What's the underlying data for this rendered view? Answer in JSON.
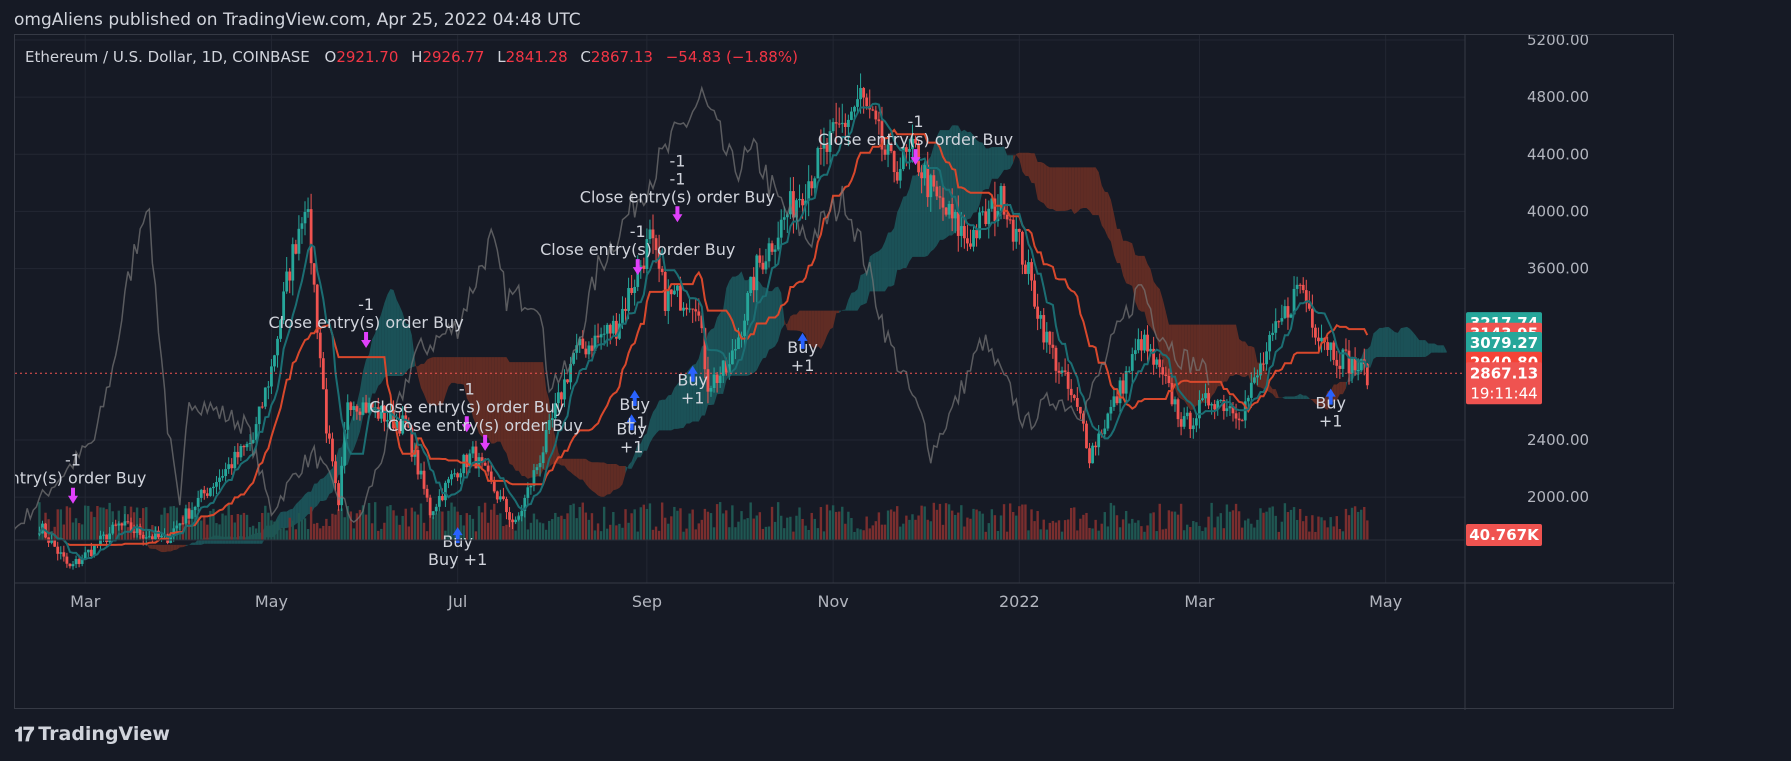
{
  "header": {
    "published": "omgAliens published on TradingView.com, Apr 25, 2022 04:48 UTC"
  },
  "footer": {
    "brand": "TradingView",
    "logo_icon": "tradingview-logo-icon"
  },
  "colors": {
    "background": "#161a25",
    "grid": "#232733",
    "up": "#26a69a",
    "down": "#ef5350",
    "text": "#b2b5be",
    "legend_value": "#f23645",
    "kijun": "#d8482c",
    "tenkan": "#1b6e73",
    "lagging": "#777777",
    "cloud_bull": "#1e6468",
    "cloud_bear": "#7a3324",
    "close_marker": "#e040fb",
    "entry_marker": "#2962ff"
  },
  "chart_data": {
    "type": "candlestick",
    "legend": {
      "symbol": "Ethereum / U.S. Dollar, 1D, COINBASE",
      "open_label": "O",
      "open": "2921.70",
      "high_label": "H",
      "high": "2926.77",
      "low_label": "L",
      "low": "2841.28",
      "close_label": "C",
      "close": "2867.13",
      "change": "−54.83 (−1.88%)"
    },
    "x_axis": {
      "ticks": [
        {
          "date": "2021-03-01",
          "label": "Mar"
        },
        {
          "date": "2021-05-01",
          "label": "May"
        },
        {
          "date": "2021-07-01",
          "label": "Jul"
        },
        {
          "date": "2021-09-01",
          "label": "Sep"
        },
        {
          "date": "2021-11-01",
          "label": "Nov"
        },
        {
          "date": "2022-01-01",
          "label": "2022"
        },
        {
          "date": "2022-03-01",
          "label": "Mar"
        },
        {
          "date": "2022-05-01",
          "label": "May"
        }
      ]
    },
    "y_axis": {
      "ticks": [
        "5200.00",
        "4800.00",
        "4400.00",
        "4000.00",
        "3600.00",
        "2400.00",
        "2000.00"
      ],
      "ylim": [
        1700,
        5200
      ]
    },
    "price_badges": [
      {
        "value": "3217.74",
        "color": "#26a69a"
      },
      {
        "value": "3143.95",
        "color": "#ef5350"
      },
      {
        "value": "3079.27",
        "color": "#26a69a"
      },
      {
        "value": "2940.80",
        "color": "#f44336"
      },
      {
        "value": "2867.13",
        "color": "#ef5350",
        "countdown": "19:11:44"
      }
    ],
    "volume_badge": {
      "value": "40.767K",
      "color": "#ef5350"
    },
    "price_path": [
      {
        "date": "2021-02-14",
        "price": 1800
      },
      {
        "date": "2021-02-24",
        "price": 1500
      },
      {
        "date": "2021-03-12",
        "price": 1800
      },
      {
        "date": "2021-03-27",
        "price": 1700
      },
      {
        "date": "2021-04-12",
        "price": 2100
      },
      {
        "date": "2021-04-25",
        "price": 2400
      },
      {
        "date": "2021-05-01",
        "price": 2900
      },
      {
        "date": "2021-05-06",
        "price": 3500
      },
      {
        "date": "2021-05-12",
        "price": 4100
      },
      {
        "date": "2021-05-14",
        "price": 3700
      },
      {
        "date": "2021-05-19",
        "price": 2500
      },
      {
        "date": "2021-05-23",
        "price": 1900
      },
      {
        "date": "2021-05-26",
        "price": 2700
      },
      {
        "date": "2021-06-04",
        "price": 2600
      },
      {
        "date": "2021-06-14",
        "price": 2500
      },
      {
        "date": "2021-06-22",
        "price": 1900
      },
      {
        "date": "2021-07-01",
        "price": 2200
      },
      {
        "date": "2021-07-06",
        "price": 2300
      },
      {
        "date": "2021-07-20",
        "price": 1800
      },
      {
        "date": "2021-07-30",
        "price": 2400
      },
      {
        "date": "2021-08-08",
        "price": 3000
      },
      {
        "date": "2021-08-22",
        "price": 3200
      },
      {
        "date": "2021-09-02",
        "price": 3800
      },
      {
        "date": "2021-09-07",
        "price": 3400
      },
      {
        "date": "2021-09-17",
        "price": 3400
      },
      {
        "date": "2021-09-21",
        "price": 2800
      },
      {
        "date": "2021-09-28",
        "price": 2900
      },
      {
        "date": "2021-10-07",
        "price": 3600
      },
      {
        "date": "2021-10-20",
        "price": 4100
      },
      {
        "date": "2021-11-10",
        "price": 4800
      },
      {
        "date": "2021-11-20",
        "price": 4300
      },
      {
        "date": "2021-11-28",
        "price": 4400
      },
      {
        "date": "2021-12-04",
        "price": 4100
      },
      {
        "date": "2021-12-15",
        "price": 3800
      },
      {
        "date": "2021-12-27",
        "price": 4100
      },
      {
        "date": "2022-01-02",
        "price": 3700
      },
      {
        "date": "2022-01-10",
        "price": 3100
      },
      {
        "date": "2022-01-22",
        "price": 2500
      },
      {
        "date": "2022-01-24",
        "price": 2300
      },
      {
        "date": "2022-02-02",
        "price": 2700
      },
      {
        "date": "2022-02-10",
        "price": 3100
      },
      {
        "date": "2022-02-20",
        "price": 2700
      },
      {
        "date": "2022-02-24",
        "price": 2500
      },
      {
        "date": "2022-03-05",
        "price": 2700
      },
      {
        "date": "2022-03-15",
        "price": 2600
      },
      {
        "date": "2022-03-25",
        "price": 3100
      },
      {
        "date": "2022-04-03",
        "price": 3500
      },
      {
        "date": "2022-04-08",
        "price": 3200
      },
      {
        "date": "2022-04-15",
        "price": 3000
      },
      {
        "date": "2022-04-25",
        "price": 2867
      }
    ],
    "annotations": [
      {
        "date": "2021-02-25",
        "price": 2010,
        "lines": [
          "-1",
          "entry(s) order Buy"
        ],
        "anchor": "middle"
      },
      {
        "date": "2021-06-01",
        "price": 3100,
        "lines": [
          "-1",
          "Close entry(s) order Buy"
        ]
      },
      {
        "date": "2021-07-04",
        "price": 2510,
        "lines": [
          "-1",
          "Close entry(s) order Buy"
        ]
      },
      {
        "date": "2021-07-10",
        "price": 2380,
        "lines": [
          "Close entry(s) order Buy"
        ]
      },
      {
        "date": "2021-08-29",
        "price": 3610,
        "lines": [
          "-1",
          "Close entry(s) order Buy"
        ]
      },
      {
        "date": "2021-09-11",
        "price": 3980,
        "lines": [
          "-1",
          "-1",
          "Close entry(s) order Buy"
        ]
      },
      {
        "date": "2021-11-28",
        "price": 4380,
        "lines": [
          "-1",
          "Close entry(s) order Buy"
        ]
      },
      {
        "date": "2021-07-01",
        "price": 1790,
        "lines": [
          "Buy",
          "Buy +1"
        ]
      },
      {
        "date": "2021-08-28",
        "price": 2750,
        "lines": [
          "Buy",
          "+1"
        ]
      },
      {
        "date": "2021-08-27",
        "price": 2580,
        "lines": [
          "Buy",
          "+1"
        ]
      },
      {
        "date": "2021-09-16",
        "price": 2920,
        "lines": [
          "Buy",
          "+1"
        ]
      },
      {
        "date": "2021-10-22",
        "price": 3150,
        "lines": [
          "Buy",
          "+1"
        ]
      },
      {
        "date": "2022-04-13",
        "price": 2760,
        "lines": [
          "Buy",
          "+1"
        ]
      }
    ]
  }
}
